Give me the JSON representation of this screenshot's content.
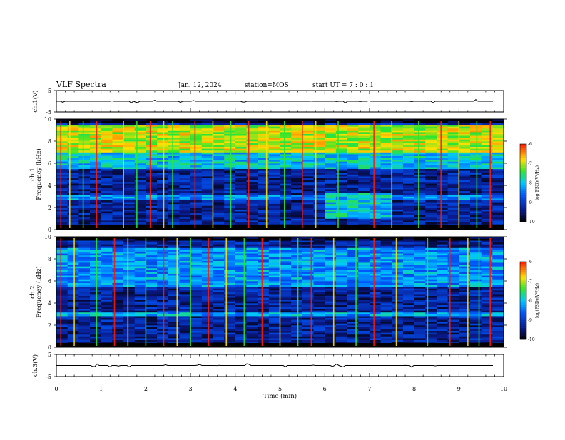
{
  "header": {
    "title": "VLF Spectra",
    "date": "Jan. 12, 2024",
    "station": "station=MOS",
    "start_ut": "start UT =  7 : 0  : 1"
  },
  "colors": {
    "background": "#000000",
    "low": "#0a1a8c",
    "mid": "#00c8ff",
    "high_green": "#2ee62e",
    "high_yellow": "#ffe000",
    "peak": "#ff1a00",
    "trace": "#000000"
  },
  "chart_data": [
    {
      "type": "line",
      "panel": "waveform-ch1",
      "ylabel": "ch.1(V)",
      "ylim": [
        -5,
        5
      ],
      "y_ticks": [
        "5",
        "-5"
      ],
      "series_level": 0,
      "xlim": [
        0,
        10
      ]
    },
    {
      "type": "heatmap",
      "panel": "spectrogram-ch1",
      "ylabel": "ch.1\nFrequency (kHz)",
      "ylim": [
        0,
        10
      ],
      "y_ticks": [
        "0",
        "2",
        "4",
        "6",
        "8",
        "10"
      ],
      "xlim": [
        0,
        10
      ],
      "bands": [
        {
          "f_from": 7.0,
          "f_to": 9.5,
          "level": -7.0
        },
        {
          "f_from": 5.5,
          "f_to": 7.0,
          "level": -8.0
        },
        {
          "f_from": 2.7,
          "f_to": 3.2,
          "level": -8.3
        },
        {
          "f_from": 1.0,
          "f_to": 3.4,
          "t_from": 6.0,
          "t_to": 7.3,
          "level": -8.0
        }
      ],
      "sferics_min": [
        0.1,
        0.3,
        0.6,
        0.9,
        1.5,
        1.8,
        2.1,
        2.4,
        2.6,
        3.1,
        3.5,
        3.9,
        4.3,
        4.7,
        5.1,
        5.5,
        5.8,
        6.3,
        7.1,
        7.5,
        8.1,
        8.6,
        9.0,
        9.4,
        9.7
      ],
      "colorbar": {
        "label": "log(PSD)(V²/Hz)",
        "ticks": [
          "-6",
          "-7",
          "-8",
          "-9",
          "-10"
        ],
        "range": [
          -10,
          -6
        ]
      }
    },
    {
      "type": "heatmap",
      "panel": "spectrogram-ch2",
      "ylabel": "ch.2\nFrequency (kHz)",
      "ylim": [
        0,
        10
      ],
      "y_ticks": [
        "0",
        "2",
        "4",
        "6",
        "8",
        "10"
      ],
      "xlim": [
        0,
        10
      ],
      "bands": [
        {
          "f_from": 5.5,
          "f_to": 9.0,
          "level": -8.3
        },
        {
          "f_from": 2.8,
          "f_to": 3.2,
          "level": -8.2
        }
      ],
      "sferics_min": [
        0.1,
        0.4,
        0.9,
        1.3,
        1.6,
        2.0,
        2.4,
        2.7,
        3.0,
        3.4,
        3.8,
        4.2,
        4.6,
        5.0,
        5.4,
        5.7,
        6.2,
        6.7,
        7.1,
        7.6,
        8.3,
        8.8,
        9.2,
        9.45,
        9.7
      ],
      "colorbar": {
        "label": "log(PSD)(V²/Hz)",
        "ticks": [
          "-6",
          "-7",
          "-8",
          "-9",
          "-10"
        ],
        "range": [
          -10,
          -6
        ]
      }
    },
    {
      "type": "line",
      "panel": "waveform-ch3",
      "ylabel": "ch.3(V)",
      "ylim": [
        -5,
        5
      ],
      "y_ticks": [
        "5",
        "-5"
      ],
      "series_level": 0,
      "xlim": [
        0,
        10
      ],
      "xlabel": "Time (min)",
      "x_ticks": [
        "0",
        "1",
        "2",
        "3",
        "4",
        "5",
        "6",
        "7",
        "8",
        "9",
        "10"
      ]
    }
  ]
}
